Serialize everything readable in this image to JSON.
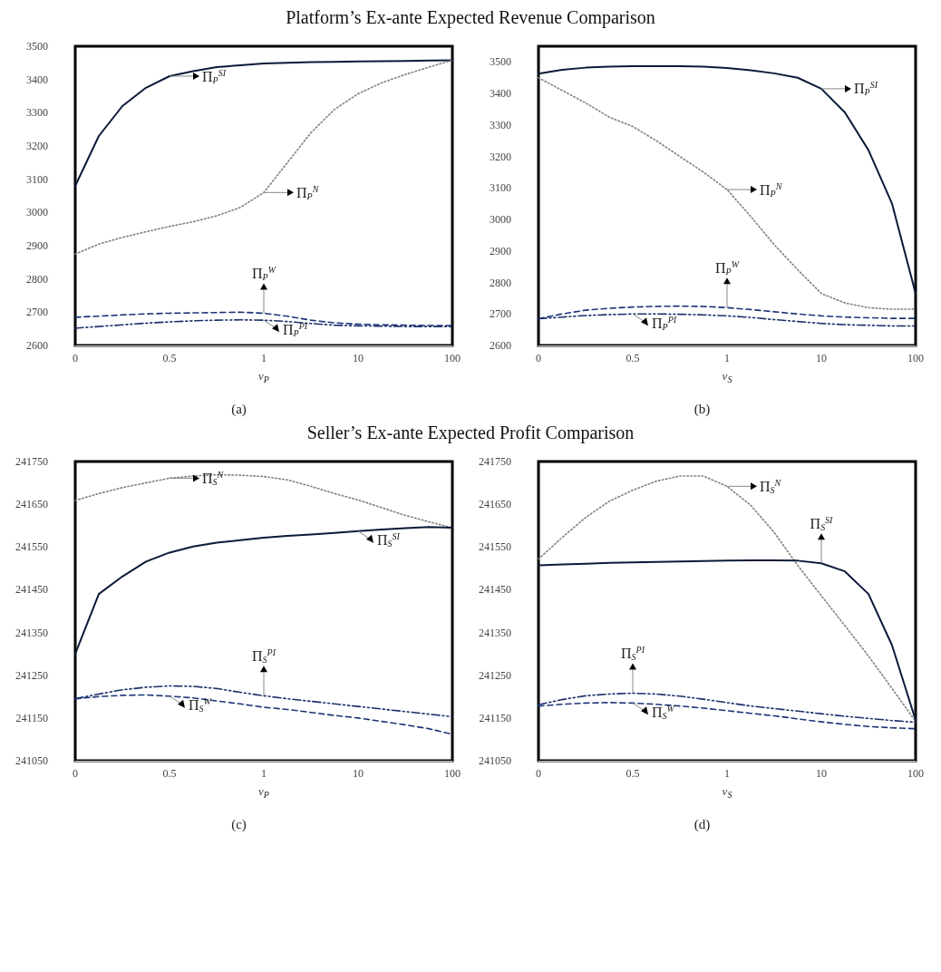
{
  "chart_data": [
    {
      "type": "line",
      "title": "Platform’s Ex-ante Expected Revenue Comparison",
      "xlabel": "v$_{P}$",
      "categories": [
        "0",
        null,
        null,
        null,
        "0.5",
        null,
        null,
        null,
        "1",
        null,
        null,
        null,
        "10",
        null,
        null,
        null,
        "100"
      ],
      "ylim": [
        2600,
        3500
      ],
      "yticks": [
        2600,
        2700,
        2800,
        2900,
        3000,
        3100,
        3200,
        3300,
        3400,
        3500
      ],
      "marker": "none",
      "series": [
        {
          "color": "#0b1a38",
          "line_style": "solid",
          "values": [
            3080,
            3230,
            3320,
            3375,
            3410,
            3425,
            3437,
            3443,
            3448,
            3450,
            3452,
            3453,
            3454,
            3455,
            3456,
            3457,
            3458
          ]
        },
        {
          "color": "#808080",
          "line_style": "dotted",
          "values": [
            2875,
            2905,
            2925,
            2942,
            2958,
            2972,
            2990,
            3015,
            3060,
            3150,
            3240,
            3310,
            3357,
            3390,
            3415,
            3437,
            3458
          ]
        },
        {
          "color": "#1c3578",
          "line_style": "dashed",
          "values": [
            2685,
            2688,
            2692,
            2695,
            2697,
            2698,
            2699,
            2700,
            2697,
            2688,
            2676,
            2668,
            2664,
            2662,
            2661,
            2660,
            2660
          ]
        },
        {
          "color": "#1c2f6b",
          "line_style": "dashdot",
          "values": [
            2652,
            2657,
            2662,
            2667,
            2671,
            2674,
            2676,
            2677,
            2676,
            2672,
            2666,
            2661,
            2659,
            2658,
            2657,
            2657,
            2657
          ]
        }
      ],
      "annotations": [
        {
          "text": "Π$_{P}$$^{SI}$",
          "x": "0.5",
          "y": 3410
        },
        {
          "text": "Π$_{P}$$^{N}$",
          "x": "1",
          "y": 3060
        },
        {
          "text": "Π$_{P}$$^{W}$",
          "x": "1",
          "y": 2697
        },
        {
          "text": "Π$_{P}$$^{PI}$",
          "x": "1",
          "y": 2676
        },
        "(a)"
      ]
    },
    {
      "type": "line",
      "xlabel": "v$_{S}$",
      "categories": [
        "0",
        null,
        null,
        null,
        "0.5",
        null,
        null,
        null,
        "1",
        null,
        null,
        null,
        "10",
        null,
        null,
        null,
        "100"
      ],
      "ylim": [
        2600,
        3550
      ],
      "yticks": [
        2600,
        2700,
        2800,
        2900,
        3000,
        3100,
        3200,
        3300,
        3400,
        3500
      ],
      "marker": "none",
      "series": [
        {
          "color": "#0b1a38",
          "line_style": "solid",
          "values": [
            3463,
            3475,
            3482,
            3485,
            3487,
            3487,
            3487,
            3485,
            3481,
            3474,
            3464,
            3450,
            3415,
            3340,
            3220,
            3050,
            2765
          ]
        },
        {
          "color": "#808080",
          "line_style": "dotted",
          "values": [
            3450,
            3410,
            3370,
            3325,
            3295,
            3250,
            3200,
            3150,
            3095,
            3010,
            2920,
            2840,
            2765,
            2735,
            2720,
            2715,
            2715
          ]
        },
        {
          "color": "#1c3578",
          "line_style": "dashed",
          "values": [
            2685,
            2700,
            2712,
            2718,
            2722,
            2724,
            2725,
            2724,
            2720,
            2714,
            2707,
            2700,
            2694,
            2690,
            2688,
            2686,
            2686
          ]
        },
        {
          "color": "#1c2f6b",
          "line_style": "dashdot",
          "values": [
            2685,
            2690,
            2695,
            2698,
            2700,
            2700,
            2699,
            2697,
            2694,
            2689,
            2682,
            2676,
            2670,
            2666,
            2664,
            2662,
            2662
          ]
        }
      ],
      "annotations": [
        {
          "text": "Π$_{P}$$^{SI}$",
          "x": "10",
          "y": 3415
        },
        {
          "text": "Π$_{P}$$^{N}$",
          "x": "1",
          "y": 3095
        },
        {
          "text": "Π$_{P}$$^{W}$",
          "x": "1",
          "y": 2720
        },
        {
          "text": "Π$_{P}$$^{PI}$",
          "x": "0.5",
          "y": 2700
        },
        "(b)"
      ]
    },
    {
      "type": "line",
      "title": "Seller’s Ex-ante Expected Profit Comparison",
      "xlabel": "v$_{P}$",
      "categories": [
        "0",
        null,
        null,
        null,
        "0.5",
        null,
        null,
        null,
        "1",
        null,
        null,
        null,
        "10",
        null,
        null,
        null,
        "100"
      ],
      "ylim": [
        241050,
        241750
      ],
      "yticks": [
        241050,
        241150,
        241250,
        241350,
        241450,
        241550,
        241650,
        241750
      ],
      "marker": "none",
      "series": [
        {
          "color": "#808080",
          "line_style": "dotted",
          "values": [
            241659,
            241675,
            241689,
            241700,
            241711,
            241716,
            241719,
            241718,
            241715,
            241707,
            241692,
            241675,
            241660,
            241642,
            241624,
            241609,
            241595
          ]
        },
        {
          "color": "#0b1a38",
          "line_style": "solid",
          "values": [
            241300,
            241440,
            241481,
            241516,
            241537,
            241551,
            241560,
            241566,
            241572,
            241576,
            241579,
            241583,
            241587,
            241591,
            241594,
            241597,
            241595
          ]
        },
        {
          "color": "#1c2f6b",
          "line_style": "dashdot",
          "values": [
            241195,
            241206,
            241216,
            241222,
            241225,
            241224,
            241219,
            241210,
            241202,
            241195,
            241189,
            241183,
            241177,
            241171,
            241165,
            241159,
            241153
          ]
        },
        {
          "color": "#1c3578",
          "line_style": "dashed",
          "values": [
            241195,
            241200,
            241203,
            241204,
            241201,
            241197,
            241190,
            241183,
            241175,
            241170,
            241163,
            241156,
            241150,
            241142,
            241134,
            241125,
            241112
          ]
        }
      ],
      "annotations": [
        {
          "text": "Π$_{S}$$^{N}$",
          "x": "0.5",
          "y": 241711
        },
        {
          "text": "Π$_{S}$$^{SI}$",
          "x": "10",
          "y": 241587
        },
        {
          "text": "Π$_{S}$$^{PI}$",
          "x": "1",
          "y": 241202
        },
        {
          "text": "Π$_{S}$$^{W}$",
          "x": "0.5",
          "y": 241201
        },
        "(c)"
      ]
    },
    {
      "type": "line",
      "xlabel": "v$_{S}$",
      "categories": [
        "0",
        null,
        null,
        null,
        "0.5",
        null,
        null,
        null,
        "1",
        null,
        null,
        null,
        "10",
        null,
        null,
        null,
        "100"
      ],
      "ylim": [
        241050,
        241750
      ],
      "yticks": [
        241050,
        241150,
        241250,
        241350,
        241450,
        241550,
        241650,
        241750
      ],
      "marker": "none",
      "series": [
        {
          "color": "#808080",
          "line_style": "dotted",
          "values": [
            241522,
            241572,
            241619,
            241657,
            241683,
            241704,
            241716,
            241716,
            241692,
            241648,
            241584,
            241507,
            241436,
            241366,
            241295,
            241219,
            241142
          ]
        },
        {
          "color": "#0b1a38",
          "line_style": "solid",
          "values": [
            241507,
            241509,
            241511,
            241513,
            241514,
            241515,
            241516,
            241517,
            241518,
            241519,
            241519,
            241518,
            241512,
            241493,
            241440,
            241320,
            241145
          ]
        },
        {
          "color": "#1c2f6b",
          "line_style": "dashdot",
          "values": [
            241181,
            241193,
            241202,
            241206,
            241208,
            241206,
            241201,
            241194,
            241186,
            241178,
            241172,
            241166,
            241160,
            241154,
            241149,
            241144,
            241140
          ]
        },
        {
          "color": "#1c3578",
          "line_style": "dashed",
          "values": [
            241178,
            241182,
            241185,
            241186,
            241185,
            241182,
            241178,
            241173,
            241167,
            241161,
            241155,
            241148,
            241141,
            241135,
            241130,
            241127,
            241125
          ]
        }
      ],
      "annotations": [
        {
          "text": "Π$_{S}$$^{N}$",
          "x": "1",
          "y": 241692
        },
        {
          "text": "Π$_{S}$$^{SI}$",
          "x": "10",
          "y": 241512
        },
        {
          "text": "Π$_{S}$$^{PI}$",
          "x": "0.5",
          "y": 241208
        },
        {
          "text": "Π$_{S}$$^{W}$",
          "x": "0.5",
          "y": 241185
        },
        "(d)"
      ]
    }
  ]
}
